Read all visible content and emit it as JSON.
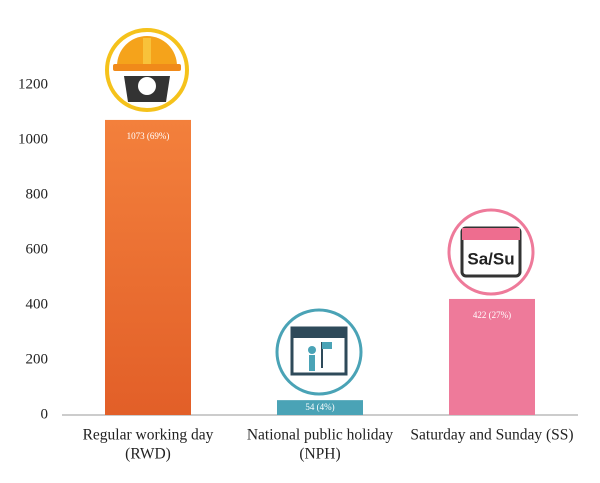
{
  "chart_data": {
    "type": "bar",
    "categories": [
      [
        "Regular working day",
        "(RWD)"
      ],
      [
        "National public holiday",
        "(NPH)"
      ],
      [
        "Saturday and Sunday (SS)"
      ]
    ],
    "values": [
      1073,
      54,
      422
    ],
    "value_labels": [
      "1073 (69%)",
      "54 (4%)",
      "422 (27%)"
    ],
    "colors": [
      "#ec6c30",
      "#4aa3b6",
      "#ee7a9a"
    ],
    "ylim": [
      0,
      1200
    ],
    "yticks": [
      0,
      200,
      400,
      600,
      800,
      1000,
      1200
    ],
    "grid": false,
    "icon_label": "Sa/Su"
  }
}
